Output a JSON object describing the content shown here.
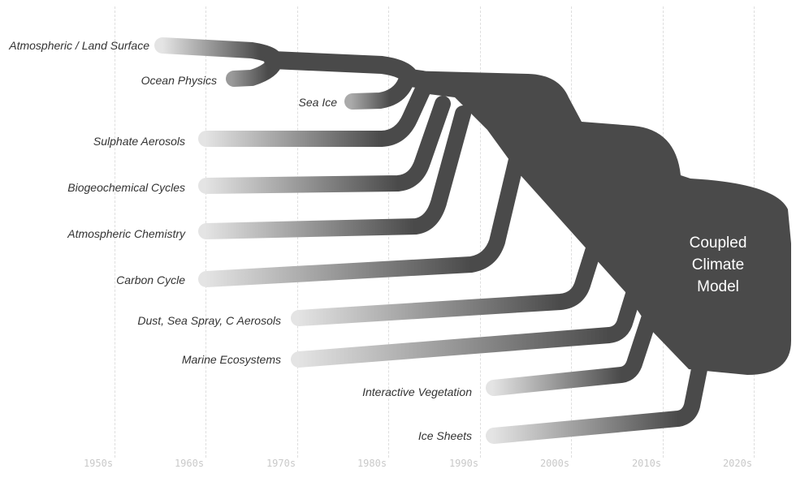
{
  "decades": [
    "1950s",
    "1960s",
    "1970s",
    "1980s",
    "1990s",
    "2000s",
    "2010s",
    "2020s"
  ],
  "components": [
    {
      "id": "atm",
      "label": "Atmospheric / Land Surface"
    },
    {
      "id": "ocean",
      "label": "Ocean Physics"
    },
    {
      "id": "seaice",
      "label": "Sea Ice"
    },
    {
      "id": "sulph",
      "label": "Sulphate Aerosols"
    },
    {
      "id": "biogeo",
      "label": "Biogeochemical Cycles"
    },
    {
      "id": "atmchem",
      "label": "Atmospheric Chemistry"
    },
    {
      "id": "carbon",
      "label": "Carbon Cycle"
    },
    {
      "id": "dust",
      "label": "Dust, Sea Spray, C Aerosols"
    },
    {
      "id": "marine",
      "label": "Marine Ecosystems"
    },
    {
      "id": "veg",
      "label": "Interactive Vegetation"
    },
    {
      "id": "ice",
      "label": "Ice Sheets"
    }
  ],
  "center": {
    "line1": "Coupled",
    "line2": "Climate",
    "line3": "Model"
  },
  "colors": {
    "branch": "#4a4a4a",
    "fade": "#e4e4e4",
    "grid": "#dedede",
    "axis_text": "#c9c9c9"
  }
}
